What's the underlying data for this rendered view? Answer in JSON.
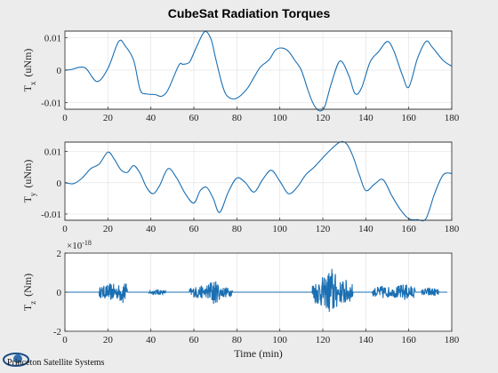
{
  "figure": {
    "title": "CubeSat Radiation Torques",
    "logo_text": "Princeton Satellite Systems"
  },
  "colors": {
    "line": "#1a6fb3",
    "background": "#ececec",
    "axes_bg": "#ffffff"
  },
  "chart_data": [
    {
      "type": "line",
      "ylabel_sym": "T",
      "ylabel_sub": "x",
      "ylabel_unit": "(uNm)",
      "xlabel": "",
      "xlim": [
        0,
        180
      ],
      "ylim": [
        -0.012,
        0.012
      ],
      "xticks": [
        0,
        20,
        40,
        60,
        80,
        100,
        120,
        140,
        160,
        180
      ],
      "xtick_labels": [
        "0",
        "20",
        "40",
        "60",
        "80",
        "100",
        "120",
        "140",
        "160",
        "180"
      ],
      "yticks": [
        0.01,
        0,
        -0.01
      ],
      "ytick_labels": [
        "0.01",
        "0",
        "-0.01"
      ],
      "grid": true,
      "series": [
        {
          "x": [
            0,
            3,
            7,
            10,
            15,
            20,
            25,
            28,
            32,
            35,
            38,
            42,
            45,
            48,
            53,
            55,
            58,
            61,
            65,
            68,
            70,
            73,
            75,
            78,
            81,
            85,
            88,
            91,
            95,
            98,
            101,
            104,
            107,
            110,
            113,
            115,
            117,
            119,
            121,
            124,
            128,
            132,
            135,
            138,
            142,
            146,
            150,
            153,
            157,
            160,
            164,
            168,
            171,
            176,
            180
          ],
          "y": [
            0,
            0.0002,
            0.0009,
            0.0004,
            -0.0035,
            0.0005,
            0.0088,
            0.0075,
            0.003,
            -0.006,
            -0.0073,
            -0.0075,
            -0.008,
            -0.006,
            0.0015,
            0.0018,
            0.0025,
            0.0068,
            0.0118,
            0.0095,
            0.004,
            -0.004,
            -0.0075,
            -0.0088,
            -0.0082,
            -0.0055,
            -0.0022,
            0.001,
            0.0032,
            0.0062,
            0.0068,
            0.0058,
            0.003,
            0.0,
            -0.006,
            -0.0095,
            -0.0118,
            -0.0125,
            -0.011,
            -0.004,
            0.0028,
            -0.0015,
            -0.0072,
            -0.0055,
            0.0025,
            0.0057,
            0.0088,
            0.006,
            -0.0015,
            -0.0052,
            0.0035,
            0.0088,
            0.007,
            0.003,
            0.0012
          ]
        }
      ]
    },
    {
      "type": "line",
      "ylabel_sym": "T",
      "ylabel_sub": "y",
      "ylabel_unit": "(uNm)",
      "xlabel": "",
      "xlim": [
        0,
        180
      ],
      "ylim": [
        -0.012,
        0.013
      ],
      "xticks": [
        0,
        20,
        40,
        60,
        80,
        100,
        120,
        140,
        160,
        180
      ],
      "xtick_labels": [
        "0",
        "20",
        "40",
        "60",
        "80",
        "100",
        "120",
        "140",
        "160",
        "180"
      ],
      "yticks": [
        0.01,
        0,
        -0.01
      ],
      "ytick_labels": [
        "0.01",
        "0",
        "-0.01"
      ],
      "grid": true,
      "series": [
        {
          "x": [
            0,
            4,
            8,
            12,
            16,
            20,
            23,
            26,
            29,
            32,
            35,
            38,
            41,
            44,
            48,
            52,
            56,
            60,
            63,
            66,
            69,
            72,
            76,
            80,
            84,
            88,
            92,
            96,
            100,
            104,
            108,
            112,
            116,
            120,
            124,
            128,
            131,
            134,
            137,
            140,
            144,
            148,
            152,
            156,
            160,
            164,
            168,
            172,
            176,
            180
          ],
          "y": [
            0,
            -0.0003,
            0.0015,
            0.0045,
            0.006,
            0.0098,
            0.0075,
            0.0042,
            0.0033,
            0.0055,
            0.003,
            -0.0015,
            -0.0035,
            -0.001,
            0.0045,
            0.0015,
            -0.0035,
            -0.0065,
            -0.0025,
            -0.0015,
            -0.005,
            -0.0095,
            -0.003,
            0.0015,
            0.0,
            -0.003,
            0.001,
            0.004,
            0.0005,
            -0.0035,
            -0.0015,
            0.0025,
            0.005,
            0.008,
            0.0108,
            0.013,
            0.0125,
            0.0085,
            0.0025,
            -0.0025,
            -0.0005,
            0.001,
            -0.004,
            -0.0085,
            -0.0115,
            -0.0118,
            -0.0115,
            -0.0035,
            0.0025,
            0.003
          ]
        }
      ]
    },
    {
      "type": "line",
      "ylabel_sym": "T",
      "ylabel_sub": "z",
      "ylabel_unit": "(Nm)",
      "exponent_label": "×10",
      "exponent_power": "-18",
      "xlabel": "Time (min)",
      "xlim": [
        0,
        180
      ],
      "ylim": [
        -2,
        2
      ],
      "xticks": [
        0,
        20,
        40,
        60,
        80,
        100,
        120,
        140,
        160,
        180
      ],
      "xtick_labels": [
        "0",
        "20",
        "40",
        "60",
        "80",
        "100",
        "120",
        "140",
        "160",
        "180"
      ],
      "yticks": [
        2,
        0,
        -2
      ],
      "ytick_labels": [
        "2",
        "0",
        "-2"
      ],
      "grid": true,
      "series": [
        {
          "bursts": [
            {
              "center": 22,
              "width": 12,
              "amp": 0.45
            },
            {
              "center": 27,
              "width": 4,
              "amp": 0.65
            },
            {
              "center": 43,
              "width": 8,
              "amp": 0.15
            },
            {
              "center": 63,
              "width": 10,
              "amp": 0.35
            },
            {
              "center": 69,
              "width": 6,
              "amp": 0.7
            },
            {
              "center": 74,
              "width": 8,
              "amp": 0.3
            },
            {
              "center": 120,
              "width": 10,
              "amp": 0.8
            },
            {
              "center": 124,
              "width": 5,
              "amp": 1.4
            },
            {
              "center": 130,
              "width": 8,
              "amp": 0.7
            },
            {
              "center": 148,
              "width": 10,
              "amp": 0.35
            },
            {
              "center": 158,
              "width": 10,
              "amp": 0.45
            },
            {
              "center": 170,
              "width": 8,
              "amp": 0.25
            }
          ]
        }
      ]
    }
  ]
}
